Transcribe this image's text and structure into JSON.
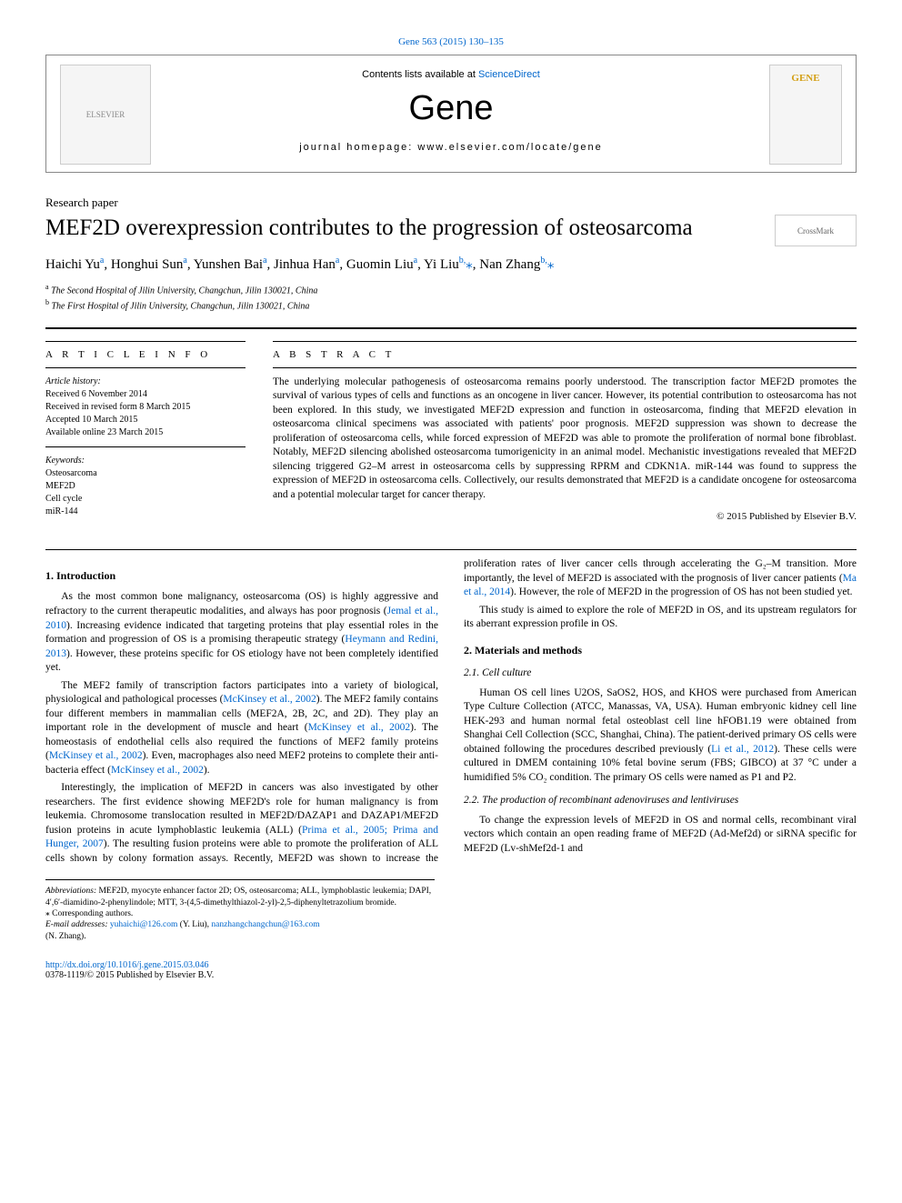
{
  "citation": {
    "text": "Gene 563 (2015) 130–135"
  },
  "header": {
    "contents_prefix": "Contents lists available at ",
    "contents_link": "ScienceDirect",
    "journal_title": "Gene",
    "homepage": "journal homepage: www.elsevier.com/locate/gene",
    "publisher_logo_alt": "ELSEVIER",
    "cover_alt": "GENE"
  },
  "article": {
    "type": "Research paper",
    "title": "MEF2D overexpression contributes to the progression of osteosarcoma",
    "crossmark_alt": "CrossMark"
  },
  "authors": {
    "list": "Haichi Yu",
    "a1_sup": "a",
    "a2": ", Honghui Sun",
    "a2_sup": "a",
    "a3": ", Yunshen Bai",
    "a3_sup": "a",
    "a4": ", Jinhua Han",
    "a4_sup": "a",
    "a5": ", Guomin Liu",
    "a5_sup": "a",
    "a6": ", Yi Liu",
    "a6_sup": "b,",
    "star1": "⁎",
    "a7": ", Nan Zhang",
    "a7_sup": "b,",
    "star2": "⁎"
  },
  "affiliations": {
    "a_sup": "a",
    "a_text": " The Second Hospital of Jilin University, Changchun, Jilin 130021, China",
    "b_sup": "b",
    "b_text": " The First Hospital of Jilin University, Changchun, Jilin 130021, China"
  },
  "info": {
    "heading": "A R T I C L E   I N F O",
    "history_label": "Article history:",
    "h1": "Received 6 November 2014",
    "h2": "Received in revised form 8 March 2015",
    "h3": "Accepted 10 March 2015",
    "h4": "Available online 23 March 2015",
    "keywords_label": "Keywords:",
    "k1": "Osteosarcoma",
    "k2": "MEF2D",
    "k3": "Cell cycle",
    "k4": "miR-144"
  },
  "abstract": {
    "heading": "A B S T R A C T",
    "text": "The underlying molecular pathogenesis of osteosarcoma remains poorly understood. The transcription factor MEF2D promotes the survival of various types of cells and functions as an oncogene in liver cancer. However, its potential contribution to osteosarcoma has not been explored. In this study, we investigated MEF2D expression and function in osteosarcoma, finding that MEF2D elevation in osteosarcoma clinical specimens was associated with patients' poor prognosis. MEF2D suppression was shown to decrease the proliferation of osteosarcoma cells, while forced expression of MEF2D was able to promote the proliferation of normal bone fibroblast. Notably, MEF2D silencing abolished osteosarcoma tumorigenicity in an animal model. Mechanistic investigations revealed that MEF2D silencing triggered G2–M arrest in osteosarcoma cells by suppressing RPRM and CDKN1A. miR-144 was found to suppress the expression of MEF2D in osteosarcoma cells. Collectively, our results demonstrated that MEF2D is a candidate oncogene for osteosarcoma and a potential molecular target for cancer therapy.",
    "copyright": "© 2015 Published by Elsevier B.V."
  },
  "body": {
    "intro_heading": "1. Introduction",
    "intro_p1a": "As the most common bone malignancy, osteosarcoma (OS) is highly aggressive and refractory to the current therapeutic modalities, and always has poor prognosis (",
    "intro_p1_cite1": "Jemal et al., 2010",
    "intro_p1b": "). Increasing evidence indicated that targeting proteins that play essential roles in the formation and progression of OS is a promising therapeutic strategy (",
    "intro_p1_cite2": "Heymann and Redini, 2013",
    "intro_p1c": "). However, these proteins specific for OS etiology have not been completely identified yet.",
    "intro_p2a": "The MEF2 family of transcription factors participates into a variety of biological, physiological and pathological processes (",
    "intro_p2_cite1": "McKinsey et al., 2002",
    "intro_p2b": "). The MEF2 family contains four different members in mammalian cells (MEF2A, 2B, 2C, and 2D). They play an important role in the development of muscle and heart (",
    "intro_p2_cite2": "McKinsey et al., 2002",
    "intro_p2c": "). The homeostasis of endothelial cells also required the functions of MEF2 family proteins (",
    "intro_p2_cite3": "McKinsey et al., 2002",
    "intro_p2d": "). Even, macrophages also need MEF2 proteins to complete their anti-bacteria effect (",
    "intro_p2_cite4": "McKinsey et al., 2002",
    "intro_p2e": ").",
    "intro_p3a": "Interestingly, the implication of MEF2D in cancers was also investigated by other researchers. The first evidence showing MEF2D's role for human malignancy is from leukemia. Chromosome translocation resulted in MEF2D/DAZAP1 and DAZAP1/MEF2D fusion proteins in acute lymphoblastic leukemia (ALL) (",
    "intro_p3_cite1": "Prima et al., 2005; Prima and ",
    "intro_p3_cite1b": "Hunger, 2007",
    "intro_p3b": "). The resulting fusion proteins were able to promote the proliferation of ALL cells shown by colony formation assays. Recently, MEF2D was shown to increase the proliferation rates of liver cancer cells through accelerating the G₂–M transition. More importantly, the level of MEF2D is associated with the prognosis of liver cancer patients (",
    "intro_p3_cite2": "Ma et al., 2014",
    "intro_p3c": "). However, the role of MEF2D in the progression of OS has not been studied yet.",
    "intro_p4": "This study is aimed to explore the role of MEF2D in OS, and its upstream regulators for its aberrant expression profile in OS.",
    "mm_heading": "2. Materials and methods",
    "cc_heading": "2.1. Cell culture",
    "cc_p1a": "Human OS cell lines U2OS, SaOS2, HOS, and KHOS were purchased from American Type Culture Collection (ATCC, Manassas, VA, USA). Human embryonic kidney cell line HEK-293 and human normal fetal osteoblast cell line hFOB1.19 were obtained from Shanghai Cell Collection (SCC, Shanghai, China). The patient-derived primary OS cells were obtained following the procedures described previously (",
    "cc_cite1": "Li et al., 2012",
    "cc_p1b": "). These cells were cultured in DMEM containing 10% fetal bovine serum (FBS; GIBCO) at 37 °C under a humidified 5% CO₂ condition. The primary OS cells were named as P1 and P2.",
    "prod_heading": "2.2. The production of recombinant adenoviruses and lentiviruses",
    "prod_p1": "To change the expression levels of MEF2D in OS and normal cells, recombinant viral vectors which contain an open reading frame of MEF2D (Ad-Mef2d) or siRNA specific for MEF2D (Lv-shMef2d-1 and"
  },
  "footnotes": {
    "abbr_label": "Abbreviations:",
    "abbr_text": " MEF2D, myocyte enhancer factor 2D; OS, osteosarcoma; ALL, lymphoblastic leukemia; DAPI, 4′,6′-diamidino-2-phenylindole; MTT, 3-(4,5-dimethylthiazol-2-yl)-2,5-diphenyltetrazolium bromide.",
    "corr": "⁎ Corresponding authors.",
    "email_label": "E-mail addresses: ",
    "email1": "yuhaichi@126.com",
    "email1_name": " (Y. Liu), ",
    "email2": "nanzhangchangchun@163.com",
    "email2_name": " (N. Zhang)."
  },
  "footer": {
    "doi": "http://dx.doi.org/10.1016/j.gene.2015.03.046",
    "issn": "0378-1119/© 2015 Published by Elsevier B.V."
  },
  "colors": {
    "link": "#0066cc",
    "text": "#000000",
    "background": "#ffffff"
  }
}
